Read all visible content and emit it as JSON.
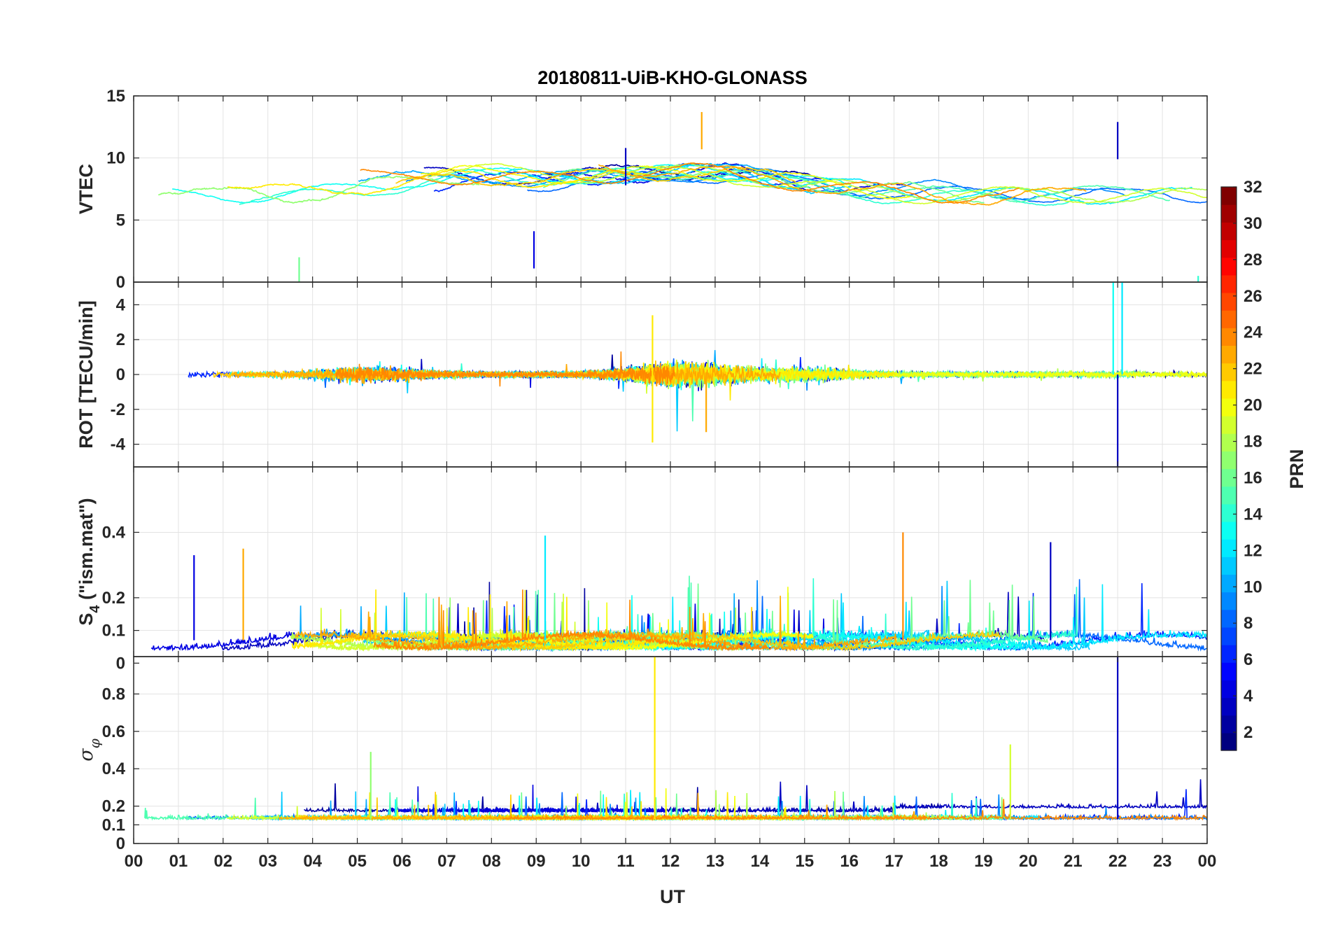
{
  "chart_data": {
    "type": "line",
    "title": "20180811-UiB-KHO-GLONASS",
    "xlabel": "UT",
    "x_tick_labels": [
      "00",
      "01",
      "02",
      "03",
      "04",
      "05",
      "06",
      "07",
      "08",
      "09",
      "10",
      "11",
      "12",
      "13",
      "14",
      "15",
      "16",
      "17",
      "18",
      "19",
      "20",
      "21",
      "22",
      "23",
      "00"
    ],
    "xlim": [
      0,
      24
    ],
    "grid": true,
    "colormap": "jet",
    "colorbar": {
      "label": "PRN",
      "range": [
        1,
        32
      ],
      "tick_labels": [
        "2",
        "4",
        "6",
        "8",
        "10",
        "12",
        "14",
        "16",
        "18",
        "20",
        "22",
        "24",
        "26",
        "28",
        "30",
        "32"
      ],
      "placement": "right"
    },
    "panels": [
      {
        "ylabel": "VTEC",
        "ylim": [
          0,
          15
        ],
        "y_tick_labels": [
          "0",
          "5",
          "10",
          "15"
        ],
        "events": [
          {
            "x": 3.7,
            "y": 2.0,
            "prn": 16
          },
          {
            "x": 8.95,
            "y": 4.1,
            "prn": 4
          },
          {
            "x": 11.0,
            "y": 10.8,
            "prn": 3
          },
          {
            "x": 12.7,
            "y": 13.7,
            "prn": 23
          },
          {
            "x": 22.0,
            "y": 12.9,
            "prn": 3
          },
          {
            "x": 23.8,
            "y": 0.5,
            "prn": 14
          }
        ]
      },
      {
        "ylabel": "ROT [TECU/min]",
        "ylim": [
          -5.3,
          5.3
        ],
        "y_tick_labels": [
          "-4",
          "-2",
          "0",
          "2",
          "4"
        ],
        "events": [
          {
            "x": 11.6,
            "y": 3.4,
            "prn": 21
          },
          {
            "x": 11.6,
            "y": -3.9,
            "prn": 21
          },
          {
            "x": 12.8,
            "y": -3.3,
            "prn": 23
          },
          {
            "x": 21.9,
            "y": 5.3,
            "prn": 13
          },
          {
            "x": 22.0,
            "y": -5.3,
            "prn": 3
          },
          {
            "x": 22.1,
            "y": 5.3,
            "prn": 12
          }
        ]
      },
      {
        "ylabel": "S_4 (\"ism.mat\")",
        "ylabel_main": "S",
        "ylabel_sub": "4",
        "ylabel_rest": " (\"ism.mat\")",
        "ylim": [
          0.02,
          0.6
        ],
        "y_tick_labels": [
          "0",
          "0.1",
          "0.2",
          "0.4"
        ],
        "events": [
          {
            "x": 1.35,
            "y": 0.33,
            "prn": 4
          },
          {
            "x": 2.45,
            "y": 0.35,
            "prn": 23
          },
          {
            "x": 9.2,
            "y": 0.39,
            "prn": 12
          },
          {
            "x": 17.2,
            "y": 0.4,
            "prn": 24
          },
          {
            "x": 20.5,
            "y": 0.37,
            "prn": 3
          }
        ]
      },
      {
        "ylabel": "σ_φ",
        "ylabel_main": "σ",
        "ylabel_sub": "φ",
        "ylim": [
          0,
          1.0
        ],
        "y_tick_labels": [
          "0",
          "0.1",
          "0.2",
          "0.4",
          "0.6",
          "0.8"
        ],
        "events": [
          {
            "x": 11.65,
            "y": 1.0,
            "prn": 21
          },
          {
            "x": 22.0,
            "y": 1.0,
            "prn": 3
          },
          {
            "x": 19.6,
            "y": 0.53,
            "prn": 19
          },
          {
            "x": 5.3,
            "y": 0.49,
            "prn": 17
          }
        ]
      }
    ]
  }
}
